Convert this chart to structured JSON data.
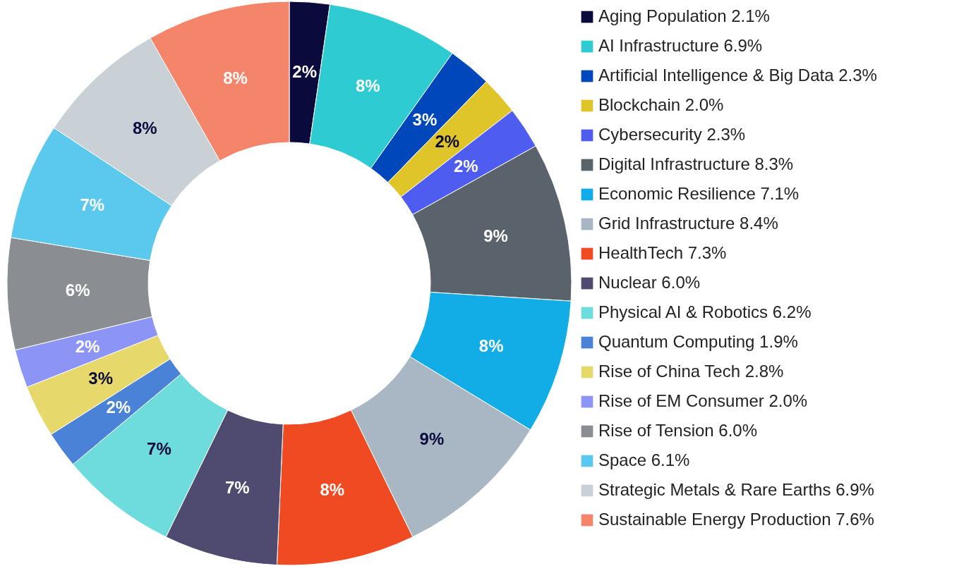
{
  "chart_data": {
    "type": "donut",
    "categories": [
      "Aging Population 2.1%",
      "AI Infrastructure 6.9%",
      "Artificial Intelligence & Big Data 2.3%",
      "Blockchain 2.0%",
      "Cybersecurity 2.3%",
      "Digital Infrastructure 8.3%",
      "Economic Resilience 7.1%",
      "Grid Infrastructure 8.4%",
      "HealthTech 7.3%",
      "Nuclear 6.0%",
      "Physical AI & Robotics 6.2%",
      "Quantum Computing 1.9%",
      "Rise of China Tech 2.8%",
      "Rise of EM Consumer 2.0%",
      "Rise of Tension 6.0%",
      "Space 6.1%",
      "Strategic Metals & Rare Earths 6.9%",
      "Sustainable Energy Production 7.6%"
    ],
    "values": [
      2.3,
      7.5,
      2.5,
      2.2,
      2.4,
      9.1,
      7.7,
      9.1,
      7.9,
      6.5,
      6.7,
      2.1,
      3.0,
      2.2,
      6.4,
      6.7,
      7.5,
      8.2
    ],
    "value_labels": [
      "2%",
      "8%",
      "3%",
      "2%",
      "2%",
      "9%",
      "8%",
      "9%",
      "8%",
      "7%",
      "7%",
      "2%",
      "3%",
      "2%",
      "6%",
      "7%",
      "8%",
      "8%"
    ],
    "colors": [
      "#0a0a3c",
      "#2ecbd2",
      "#0047bb",
      "#e0c52a",
      "#4f5cf0",
      "#5a636b",
      "#12ade6",
      "#a9b7c4",
      "#f04a23",
      "#4e4a70",
      "#6edcdc",
      "#4a82d8",
      "#e6d86a",
      "#8c94f5",
      "#8a8d91",
      "#5bc8ee",
      "#c9d0d6",
      "#f5856a"
    ],
    "legend": "right"
  }
}
